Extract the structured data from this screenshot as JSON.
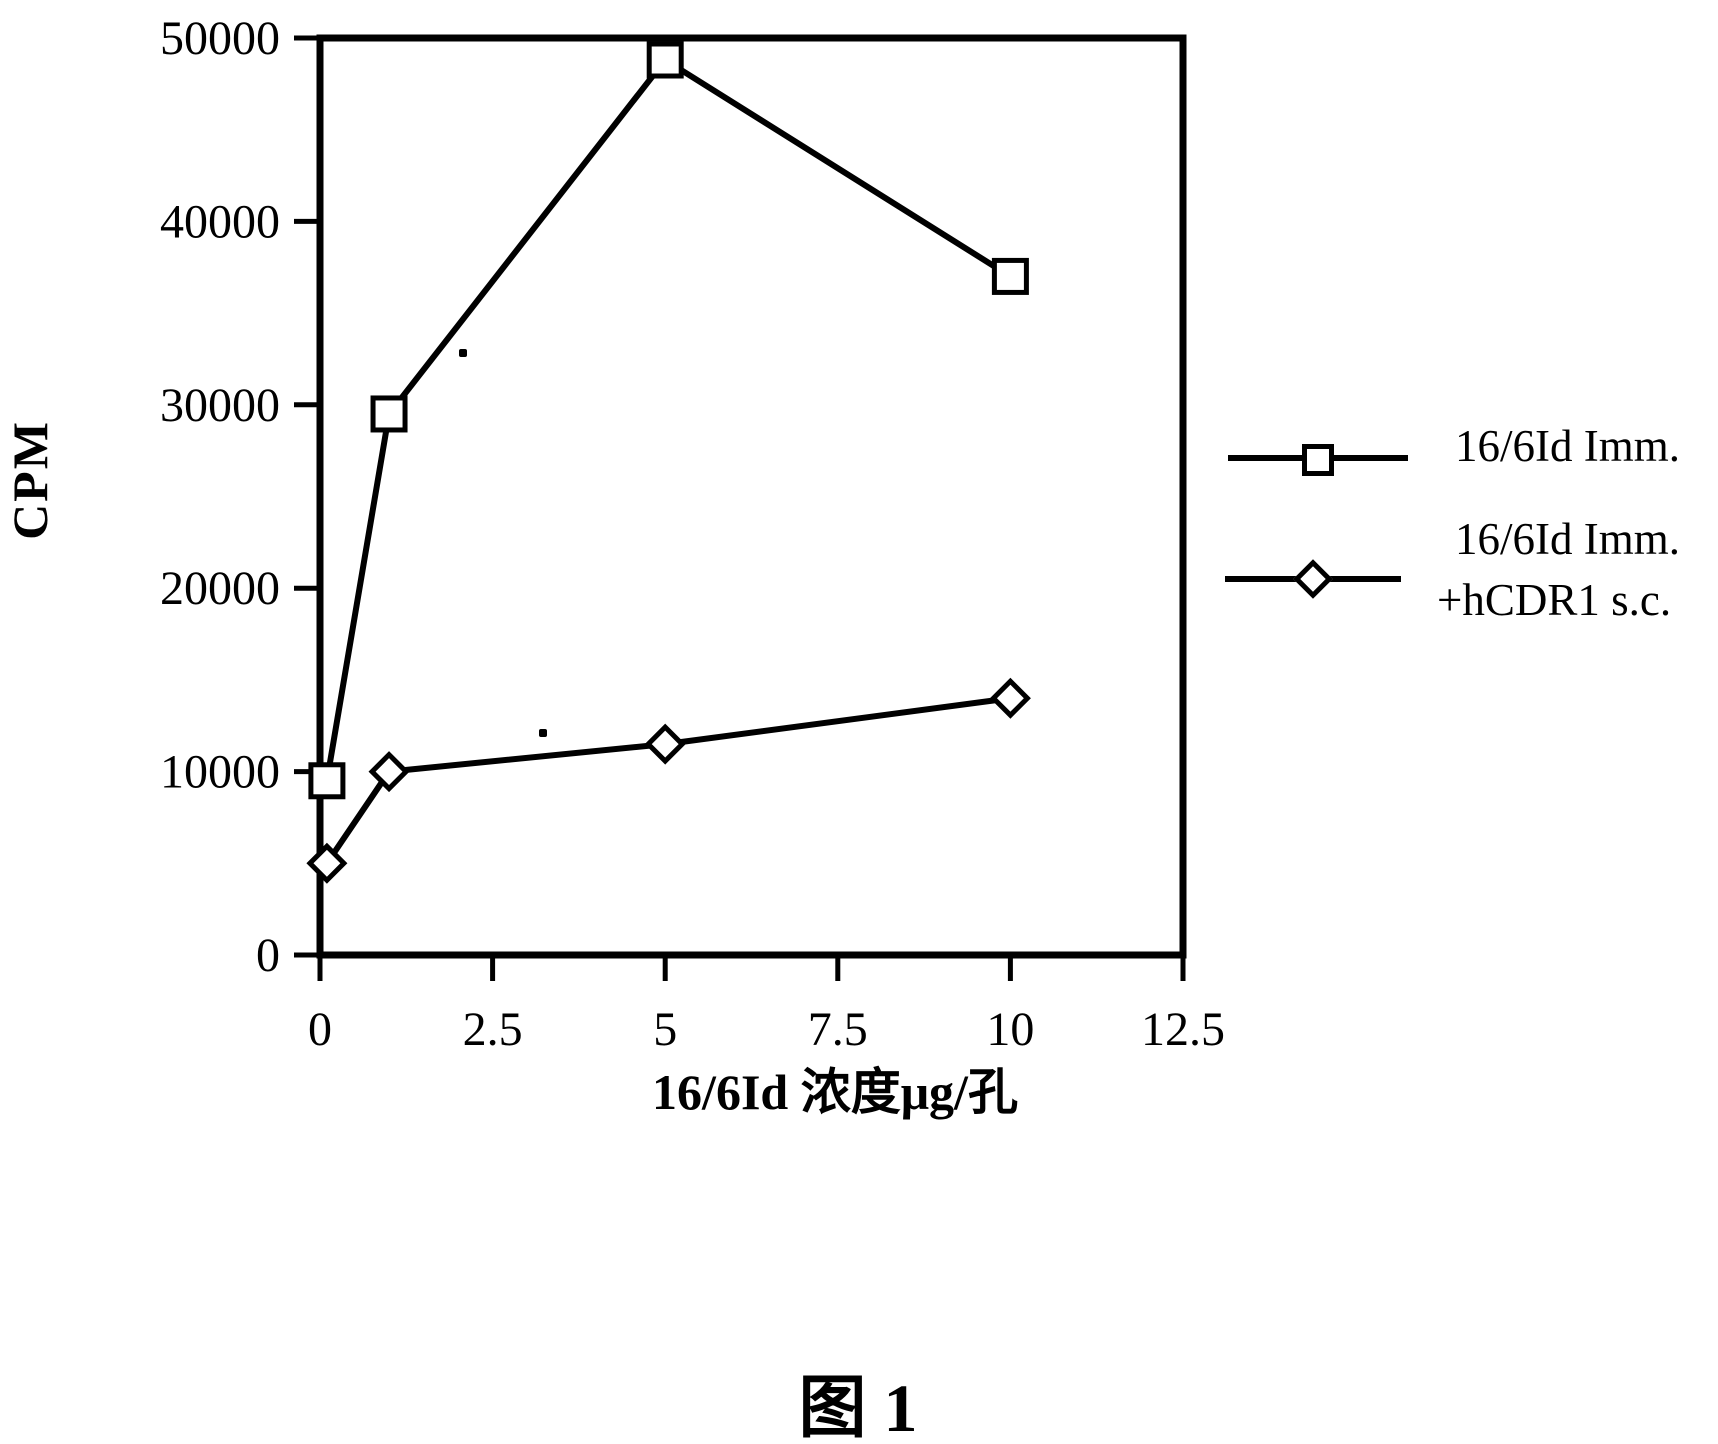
{
  "figure": {
    "caption": "图 1"
  },
  "legend": {
    "entries": [
      {
        "marker": "square",
        "label_lines": [
          "16/6Id Imm."
        ]
      },
      {
        "marker": "diamond",
        "label_lines": [
          "16/6Id Imm.",
          "+hCDR1 s.c."
        ]
      }
    ]
  },
  "chart_data": {
    "type": "line",
    "title": "",
    "xlabel": "16/6Id 浓度μg/孔",
    "ylabel": "CPM",
    "xlim": [
      0,
      12.5
    ],
    "ylim": [
      0,
      50000
    ],
    "x_ticks": [
      0,
      2.5,
      5,
      7.5,
      10,
      12.5
    ],
    "x_tick_labels": [
      "0",
      "2.5",
      "5",
      "7.5",
      "10",
      "12.5"
    ],
    "y_ticks": [
      0,
      10000,
      20000,
      30000,
      40000,
      50000
    ],
    "y_tick_labels": [
      "0",
      "10000",
      "20000",
      "30000",
      "40000",
      "50000"
    ],
    "grid": false,
    "legend_position": "right-outside",
    "line_color": "#000000",
    "series": [
      {
        "name": "16/6Id Imm.",
        "marker": "square",
        "x": [
          0.1,
          1,
          5,
          10
        ],
        "y": [
          9500,
          29500,
          48800,
          37000
        ]
      },
      {
        "name": "16/6Id Imm. +hCDR1 s.c.",
        "marker": "diamond",
        "x": [
          0.1,
          1,
          5,
          10
        ],
        "y": [
          5000,
          10000,
          11500,
          14000
        ]
      }
    ]
  }
}
